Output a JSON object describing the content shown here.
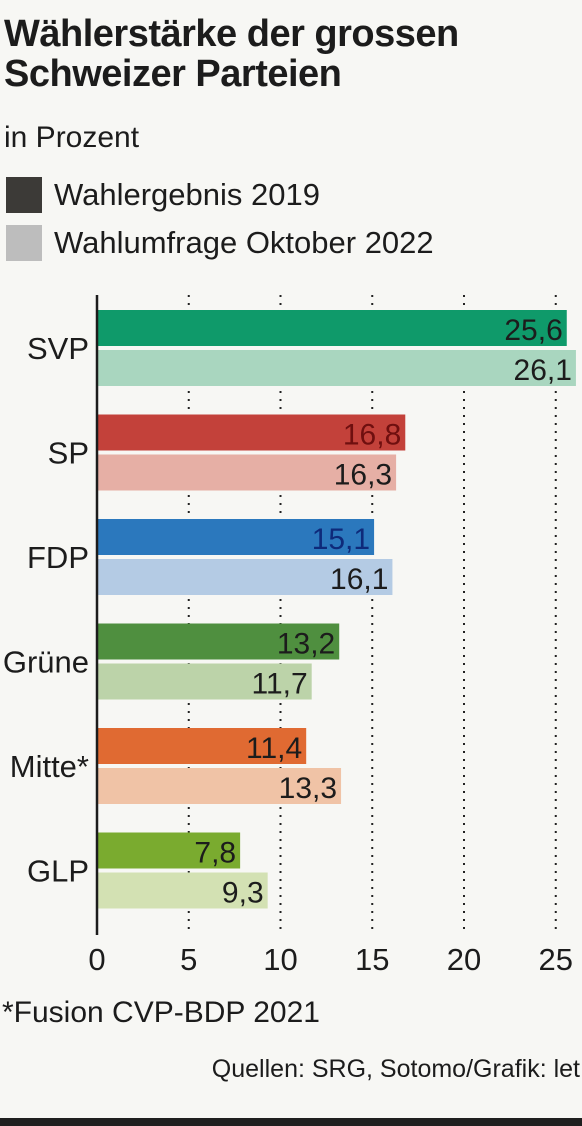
{
  "title": "Wählerstärke der grossen Schweizer Parteien",
  "subtitle": "in Prozent",
  "legend": [
    {
      "label": "Wahlergebnis 2019",
      "color": "#3c3a37"
    },
    {
      "label": "Wahlumfrage Oktober 2022",
      "color": "#bdbdbd"
    }
  ],
  "footnote": "*Fusion CVP-BDP 2021",
  "source": "Quellen: SRG, Sotomo/Grafik: let",
  "chart_data": {
    "type": "bar",
    "orientation": "horizontal",
    "categories": [
      "SVP",
      "SP",
      "FDP",
      "Grüne",
      "Mitte*",
      "GLP"
    ],
    "series": [
      {
        "name": "Wahlergebnis 2019",
        "values": [
          25.6,
          16.8,
          15.1,
          13.2,
          11.4,
          7.8
        ]
      },
      {
        "name": "Wahlumfrage Oktober 2022",
        "values": [
          26.1,
          16.3,
          16.1,
          11.7,
          13.3,
          9.3
        ]
      }
    ],
    "value_labels": [
      [
        "25,6",
        "16,8",
        "15,1",
        "13,2",
        "11,4",
        "7,8"
      ],
      [
        "26,1",
        "16,3",
        "16,1",
        "11,7",
        "13,3",
        "9,3"
      ]
    ],
    "colors_2019": [
      "#0f9a6a",
      "#c3413a",
      "#2b78bd",
      "#4f8f3f",
      "#e06a32",
      "#7aab2f"
    ],
    "colors_2022": [
      "#a9d6bf",
      "#e6afa5",
      "#b4cbe4",
      "#bcd3a9",
      "#f0c3a6",
      "#d3e1b3"
    ],
    "label_colors_2019": [
      "#1c1c1c",
      "#6f0f0f",
      "#0e2a7a",
      "#1c1c1c",
      "#1c1c1c",
      "#1c1c1c"
    ],
    "xlim": [
      0,
      26.5
    ],
    "xticks": [
      0,
      5,
      10,
      15,
      20,
      25
    ],
    "grid": "dotted vertical"
  }
}
